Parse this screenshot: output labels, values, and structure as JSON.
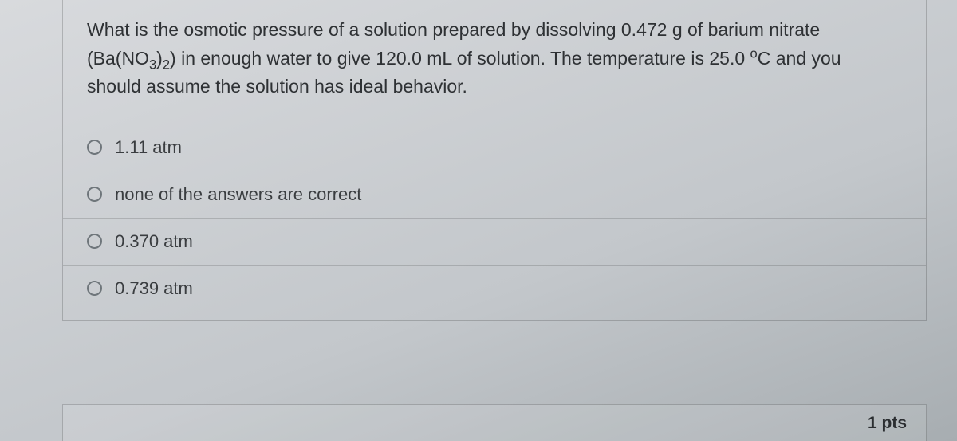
{
  "question": {
    "line1_a": "What is the osmotic pressure of a solution prepared by dissolving 0.472 g of barium nitrate",
    "line2_pre": "(Ba(NO",
    "line2_sub1": "3",
    "line2_mid": ")",
    "line2_sub2": "2",
    "line2_post": ") in enough water to give 120.0 mL of solution. The temperature is 25.0 ",
    "line2_deg": "o",
    "line2_unit": "C and you",
    "line3": "should assume the solution has ideal behavior."
  },
  "options": [
    {
      "label": "1.11 atm"
    },
    {
      "label": "none of the answers are correct"
    },
    {
      "label": "0.370 atm"
    },
    {
      "label": "0.739 atm"
    }
  ],
  "points_label": "1 pts"
}
